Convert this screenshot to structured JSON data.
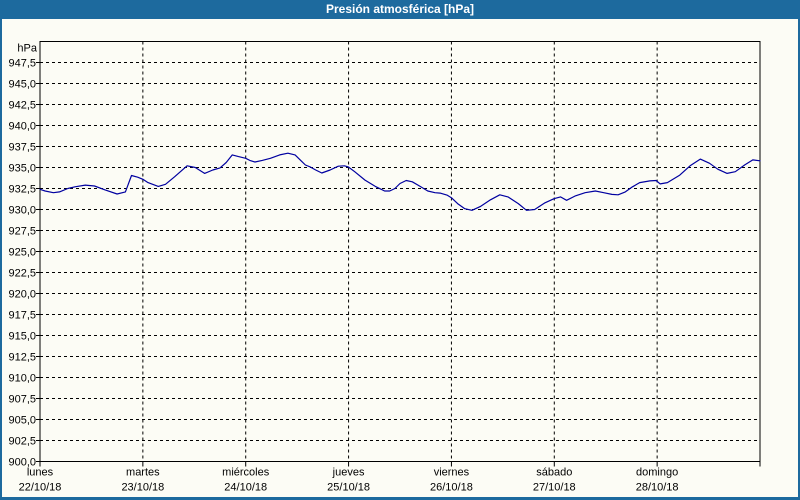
{
  "window": {
    "title": "Presión atmosférica [hPa]"
  },
  "colors": {
    "frame_blue": "#1d6a9e",
    "title_text": "#ffffff",
    "content_bg": "#fcfcf5",
    "grid_black": "#000000",
    "line_navy": "#0000a0"
  },
  "chart_data": {
    "type": "line",
    "title": "Presión atmosférica [hPa]",
    "y_unit_label": "hPa",
    "ylim": [
      900,
      950
    ],
    "ytick_step": 2.5,
    "ytick_values": [
      947.5,
      945.0,
      942.5,
      940.0,
      937.5,
      935.0,
      932.5,
      930.0,
      927.5,
      925.0,
      922.5,
      920.0,
      917.5,
      915.0,
      912.5,
      910.0,
      907.5,
      905.0,
      902.5,
      900.0
    ],
    "ytick_labels": [
      "947,5",
      "945,0",
      "942,5",
      "940,0",
      "937,5",
      "935,0",
      "932,5",
      "930,0",
      "927,5",
      "925,0",
      "922,5",
      "920,0",
      "917,5",
      "915,0",
      "912,5",
      "910,0",
      "907,5",
      "905,0",
      "902,5",
      "900,0"
    ],
    "xlim_days": [
      0,
      7
    ],
    "x_axis_days": [
      {
        "weekday": "lunes",
        "date": "22/10/18",
        "day_index": 0
      },
      {
        "weekday": "martes",
        "date": "23/10/18",
        "day_index": 1
      },
      {
        "weekday": "miércoles",
        "date": "24/10/18",
        "day_index": 2
      },
      {
        "weekday": "jueves",
        "date": "25/10/18",
        "day_index": 3
      },
      {
        "weekday": "viernes",
        "date": "26/10/18",
        "day_index": 4
      },
      {
        "weekday": "sábado",
        "date": "27/10/18",
        "day_index": 5
      },
      {
        "weekday": "domingo",
        "date": "28/10/18",
        "day_index": 6
      }
    ],
    "grid": "dashed",
    "legend": "none",
    "series": [
      {
        "name": "Presión atmosférica",
        "color": "#0000a0",
        "x_unit": "days since lunes 22/10/18 00:00",
        "points": [
          [
            0.0,
            932.4
          ],
          [
            0.05,
            932.2
          ],
          [
            0.13,
            932.0
          ],
          [
            0.19,
            932.1
          ],
          [
            0.27,
            932.5
          ],
          [
            0.34,
            932.7
          ],
          [
            0.44,
            932.9
          ],
          [
            0.53,
            932.8
          ],
          [
            0.63,
            932.35
          ],
          [
            0.75,
            931.85
          ],
          [
            0.83,
            932.1
          ],
          [
            0.89,
            934.05
          ],
          [
            0.95,
            933.85
          ],
          [
            1.0,
            933.6
          ],
          [
            1.05,
            933.2
          ],
          [
            1.15,
            932.75
          ],
          [
            1.22,
            933.0
          ],
          [
            1.31,
            933.9
          ],
          [
            1.43,
            935.2
          ],
          [
            1.51,
            935.0
          ],
          [
            1.6,
            934.3
          ],
          [
            1.68,
            934.7
          ],
          [
            1.75,
            934.95
          ],
          [
            1.81,
            935.6
          ],
          [
            1.87,
            936.5
          ],
          [
            1.93,
            936.3
          ],
          [
            2.0,
            936.1
          ],
          [
            2.04,
            935.85
          ],
          [
            2.09,
            935.65
          ],
          [
            2.16,
            935.85
          ],
          [
            2.24,
            936.1
          ],
          [
            2.33,
            936.5
          ],
          [
            2.41,
            936.7
          ],
          [
            2.48,
            936.5
          ],
          [
            2.53,
            935.9
          ],
          [
            2.58,
            935.3
          ],
          [
            2.63,
            935.05
          ],
          [
            2.68,
            934.7
          ],
          [
            2.74,
            934.35
          ],
          [
            2.82,
            934.7
          ],
          [
            2.9,
            935.15
          ],
          [
            2.96,
            935.2
          ],
          [
            3.0,
            935.05
          ],
          [
            3.06,
            934.5
          ],
          [
            3.16,
            933.5
          ],
          [
            3.26,
            932.75
          ],
          [
            3.35,
            932.2
          ],
          [
            3.4,
            932.2
          ],
          [
            3.45,
            932.5
          ],
          [
            3.5,
            933.1
          ],
          [
            3.56,
            933.45
          ],
          [
            3.62,
            933.3
          ],
          [
            3.69,
            932.8
          ],
          [
            3.77,
            932.2
          ],
          [
            3.84,
            932.0
          ],
          [
            3.89,
            931.95
          ],
          [
            3.96,
            931.7
          ],
          [
            4.0,
            931.4
          ],
          [
            4.06,
            930.7
          ],
          [
            4.13,
            930.1
          ],
          [
            4.2,
            929.9
          ],
          [
            4.28,
            930.35
          ],
          [
            4.38,
            931.15
          ],
          [
            4.47,
            931.75
          ],
          [
            4.55,
            931.5
          ],
          [
            4.65,
            930.7
          ],
          [
            4.73,
            929.9
          ],
          [
            4.81,
            930.0
          ],
          [
            4.91,
            930.8
          ],
          [
            5.0,
            931.3
          ],
          [
            5.06,
            931.5
          ],
          [
            5.12,
            931.1
          ],
          [
            5.2,
            931.6
          ],
          [
            5.3,
            932.0
          ],
          [
            5.4,
            932.2
          ],
          [
            5.48,
            932.0
          ],
          [
            5.56,
            931.8
          ],
          [
            5.62,
            931.75
          ],
          [
            5.69,
            932.1
          ],
          [
            5.76,
            932.7
          ],
          [
            5.83,
            933.2
          ],
          [
            5.93,
            933.4
          ],
          [
            5.99,
            933.45
          ],
          [
            6.03,
            933.05
          ],
          [
            6.1,
            933.2
          ],
          [
            6.22,
            934.1
          ],
          [
            6.32,
            935.2
          ],
          [
            6.42,
            936.0
          ],
          [
            6.51,
            935.5
          ],
          [
            6.59,
            934.8
          ],
          [
            6.68,
            934.3
          ],
          [
            6.76,
            934.5
          ],
          [
            6.85,
            935.3
          ],
          [
            6.93,
            935.9
          ],
          [
            7.0,
            935.8
          ]
        ]
      }
    ]
  }
}
